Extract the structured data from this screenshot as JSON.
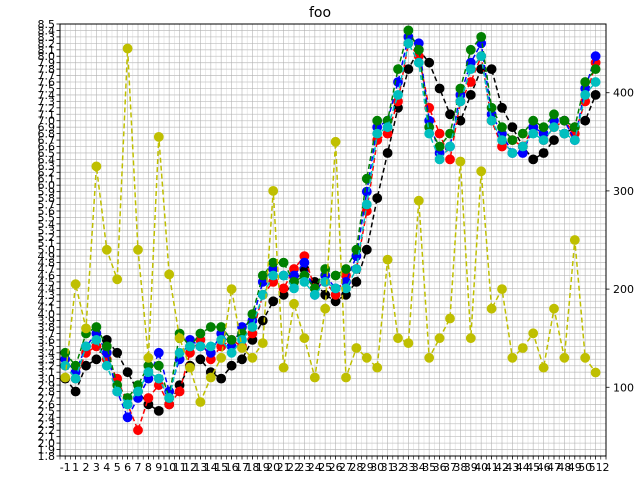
{
  "chart_data": {
    "type": "line",
    "title": "foo",
    "xlabel": "",
    "ylabel": "",
    "grid": true,
    "legend": "none",
    "left_axis": {
      "ylim": [
        1.8,
        8.5
      ],
      "label_step": 0.1,
      "top_tick_label": "8.5"
    },
    "right_axis": {
      "ylim": [
        30,
        470
      ],
      "ticks": [
        100,
        200,
        300,
        400
      ]
    },
    "x_axis": {
      "xlim": [
        -0.5,
        52
      ],
      "first_tick_label": "-1",
      "last_tick_label": "2"
    },
    "series": [
      {
        "color": "#000000",
        "marker": "o",
        "linestyle": "dashed",
        "axis": "left",
        "points": [
          [
            0,
            3.0
          ],
          [
            1,
            2.8
          ],
          [
            2,
            3.2
          ],
          [
            3,
            3.3
          ],
          [
            4,
            3.6
          ],
          [
            5,
            3.4
          ],
          [
            6,
            3.1
          ],
          [
            7,
            2.8
          ],
          [
            8,
            2.6
          ],
          [
            9,
            2.5
          ],
          [
            10,
            2.6
          ],
          [
            11,
            2.9
          ],
          [
            12,
            3.2
          ],
          [
            13,
            3.3
          ],
          [
            14,
            3.1
          ],
          [
            15,
            3.0
          ],
          [
            16,
            3.2
          ],
          [
            17,
            3.3
          ],
          [
            18,
            3.6
          ],
          [
            19,
            3.9
          ],
          [
            20,
            4.2
          ],
          [
            21,
            4.3
          ],
          [
            22,
            4.5
          ],
          [
            23,
            4.7
          ],
          [
            24,
            4.5
          ],
          [
            25,
            4.3
          ],
          [
            26,
            4.2
          ],
          [
            27,
            4.3
          ],
          [
            28,
            4.5
          ],
          [
            29,
            5.0
          ],
          [
            30,
            5.8
          ],
          [
            31,
            6.5
          ],
          [
            32,
            7.2
          ],
          [
            33,
            7.8
          ],
          [
            34,
            8.1
          ],
          [
            35,
            7.9
          ],
          [
            36,
            7.5
          ],
          [
            37,
            7.1
          ],
          [
            38,
            7.0
          ],
          [
            39,
            7.4
          ],
          [
            40,
            7.8
          ],
          [
            41,
            7.8
          ],
          [
            42,
            7.2
          ],
          [
            43,
            6.9
          ],
          [
            44,
            6.6
          ],
          [
            45,
            6.4
          ],
          [
            46,
            6.5
          ],
          [
            47,
            6.7
          ],
          [
            48,
            6.8
          ],
          [
            49,
            6.9
          ],
          [
            50,
            7.0
          ],
          [
            51,
            7.4
          ]
        ]
      },
      {
        "color": "#ff0000",
        "marker": "o",
        "linestyle": "dashed",
        "axis": "left",
        "points": [
          [
            0,
            3.2
          ],
          [
            1,
            3.0
          ],
          [
            2,
            3.4
          ],
          [
            3,
            3.5
          ],
          [
            4,
            3.3
          ],
          [
            5,
            3.0
          ],
          [
            6,
            2.6
          ],
          [
            7,
            2.2
          ],
          [
            8,
            2.7
          ],
          [
            9,
            2.9
          ],
          [
            10,
            2.6
          ],
          [
            11,
            2.8
          ],
          [
            12,
            3.4
          ],
          [
            13,
            3.6
          ],
          [
            14,
            3.3
          ],
          [
            15,
            3.5
          ],
          [
            16,
            3.6
          ],
          [
            17,
            3.5
          ],
          [
            18,
            3.7
          ],
          [
            19,
            4.3
          ],
          [
            20,
            4.5
          ],
          [
            21,
            4.4
          ],
          [
            22,
            4.7
          ],
          [
            23,
            4.9
          ],
          [
            24,
            4.4
          ],
          [
            25,
            4.5
          ],
          [
            26,
            4.3
          ],
          [
            27,
            4.6
          ],
          [
            28,
            4.7
          ],
          [
            29,
            5.6
          ],
          [
            30,
            6.7
          ],
          [
            31,
            6.8
          ],
          [
            32,
            7.3
          ],
          [
            33,
            8.2
          ],
          [
            34,
            8.0
          ],
          [
            35,
            7.2
          ],
          [
            36,
            6.8
          ],
          [
            37,
            6.4
          ],
          [
            38,
            7.3
          ],
          [
            39,
            7.6
          ],
          [
            40,
            8.0
          ],
          [
            41,
            7.0
          ],
          [
            42,
            6.6
          ],
          [
            43,
            6.7
          ],
          [
            44,
            6.6
          ],
          [
            45,
            6.9
          ],
          [
            46,
            6.7
          ],
          [
            47,
            6.9
          ],
          [
            48,
            7.0
          ],
          [
            49,
            6.8
          ],
          [
            50,
            7.3
          ],
          [
            51,
            7.9
          ]
        ]
      },
      {
        "color": "#0000ff",
        "marker": "o",
        "linestyle": "dashed",
        "axis": "left",
        "points": [
          [
            0,
            3.3
          ],
          [
            1,
            3.1
          ],
          [
            2,
            3.5
          ],
          [
            3,
            3.7
          ],
          [
            4,
            3.4
          ],
          [
            5,
            2.8
          ],
          [
            6,
            2.4
          ],
          [
            7,
            2.7
          ],
          [
            8,
            3.0
          ],
          [
            9,
            3.4
          ],
          [
            10,
            2.8
          ],
          [
            11,
            3.3
          ],
          [
            12,
            3.6
          ],
          [
            13,
            3.5
          ],
          [
            14,
            3.4
          ],
          [
            15,
            3.7
          ],
          [
            16,
            3.5
          ],
          [
            17,
            3.8
          ],
          [
            18,
            3.9
          ],
          [
            19,
            4.5
          ],
          [
            20,
            4.7
          ],
          [
            21,
            4.6
          ],
          [
            22,
            4.6
          ],
          [
            23,
            4.8
          ],
          [
            24,
            4.3
          ],
          [
            25,
            4.6
          ],
          [
            26,
            4.4
          ],
          [
            27,
            4.5
          ],
          [
            28,
            4.9
          ],
          [
            29,
            5.9
          ],
          [
            30,
            6.9
          ],
          [
            31,
            7.0
          ],
          [
            32,
            7.6
          ],
          [
            33,
            8.3
          ],
          [
            34,
            8.2
          ],
          [
            35,
            7.0
          ],
          [
            36,
            6.5
          ],
          [
            37,
            6.6
          ],
          [
            38,
            7.4
          ],
          [
            39,
            7.9
          ],
          [
            40,
            8.2
          ],
          [
            41,
            7.1
          ],
          [
            42,
            6.8
          ],
          [
            43,
            6.5
          ],
          [
            44,
            6.5
          ],
          [
            45,
            6.9
          ],
          [
            46,
            6.8
          ],
          [
            47,
            7.0
          ],
          [
            48,
            7.0
          ],
          [
            49,
            6.7
          ],
          [
            50,
            7.5
          ],
          [
            51,
            8.0
          ]
        ]
      },
      {
        "color": "#008000",
        "marker": "o",
        "linestyle": "dashed",
        "axis": "left",
        "points": [
          [
            0,
            3.4
          ],
          [
            1,
            3.2
          ],
          [
            2,
            3.7
          ],
          [
            3,
            3.8
          ],
          [
            4,
            3.5
          ],
          [
            5,
            2.9
          ],
          [
            6,
            2.7
          ],
          [
            7,
            2.9
          ],
          [
            8,
            3.2
          ],
          [
            9,
            3.2
          ],
          [
            10,
            2.7
          ],
          [
            11,
            3.7
          ],
          [
            12,
            3.5
          ],
          [
            13,
            3.7
          ],
          [
            14,
            3.8
          ],
          [
            15,
            3.8
          ],
          [
            16,
            3.6
          ],
          [
            17,
            3.7
          ],
          [
            18,
            4.0
          ],
          [
            19,
            4.6
          ],
          [
            20,
            4.8
          ],
          [
            21,
            4.8
          ],
          [
            22,
            4.5
          ],
          [
            23,
            4.6
          ],
          [
            24,
            4.4
          ],
          [
            25,
            4.7
          ],
          [
            26,
            4.6
          ],
          [
            27,
            4.7
          ],
          [
            28,
            5.0
          ],
          [
            29,
            6.1
          ],
          [
            30,
            7.0
          ],
          [
            31,
            7.0
          ],
          [
            32,
            7.8
          ],
          [
            33,
            8.4
          ],
          [
            34,
            8.1
          ],
          [
            35,
            6.9
          ],
          [
            36,
            6.6
          ],
          [
            37,
            6.8
          ],
          [
            38,
            7.5
          ],
          [
            39,
            8.1
          ],
          [
            40,
            8.3
          ],
          [
            41,
            7.2
          ],
          [
            42,
            6.9
          ],
          [
            43,
            6.7
          ],
          [
            44,
            6.8
          ],
          [
            45,
            7.0
          ],
          [
            46,
            6.9
          ],
          [
            47,
            7.1
          ],
          [
            48,
            7.0
          ],
          [
            49,
            6.9
          ],
          [
            50,
            7.6
          ],
          [
            51,
            7.8
          ]
        ]
      },
      {
        "color": "#00bfbf",
        "marker": "o",
        "linestyle": "dashed",
        "axis": "left",
        "points": [
          [
            0,
            3.2
          ],
          [
            1,
            3.0
          ],
          [
            2,
            3.5
          ],
          [
            3,
            3.6
          ],
          [
            4,
            3.2
          ],
          [
            5,
            2.8
          ],
          [
            6,
            2.6
          ],
          [
            7,
            2.8
          ],
          [
            8,
            3.1
          ],
          [
            9,
            3.0
          ],
          [
            10,
            2.7
          ],
          [
            11,
            3.4
          ],
          [
            12,
            3.5
          ],
          [
            13,
            3.5
          ],
          [
            14,
            3.5
          ],
          [
            15,
            3.6
          ],
          [
            16,
            3.4
          ],
          [
            17,
            3.6
          ],
          [
            18,
            3.8
          ],
          [
            19,
            4.3
          ],
          [
            20,
            4.6
          ],
          [
            21,
            4.6
          ],
          [
            22,
            4.4
          ],
          [
            23,
            4.5
          ],
          [
            24,
            4.3
          ],
          [
            25,
            4.5
          ],
          [
            26,
            4.4
          ],
          [
            27,
            4.4
          ],
          [
            28,
            4.7
          ],
          [
            29,
            5.7
          ],
          [
            30,
            6.8
          ],
          [
            31,
            6.9
          ],
          [
            32,
            7.4
          ],
          [
            33,
            8.2
          ],
          [
            34,
            7.9
          ],
          [
            35,
            6.8
          ],
          [
            36,
            6.4
          ],
          [
            37,
            6.6
          ],
          [
            38,
            7.3
          ],
          [
            39,
            7.8
          ],
          [
            40,
            8.0
          ],
          [
            41,
            7.0
          ],
          [
            42,
            6.7
          ],
          [
            43,
            6.5
          ],
          [
            44,
            6.6
          ],
          [
            45,
            6.8
          ],
          [
            46,
            6.7
          ],
          [
            47,
            6.9
          ],
          [
            48,
            6.8
          ],
          [
            49,
            6.7
          ],
          [
            50,
            7.4
          ],
          [
            51,
            7.6
          ]
        ]
      },
      {
        "color": "#bfbf00",
        "marker": "o",
        "linestyle": "dashed",
        "axis": "right",
        "points": [
          [
            0,
            110
          ],
          [
            1,
            205
          ],
          [
            2,
            160
          ],
          [
            3,
            325
          ],
          [
            4,
            240
          ],
          [
            5,
            210
          ],
          [
            6,
            445
          ],
          [
            7,
            240
          ],
          [
            8,
            130
          ],
          [
            9,
            355
          ],
          [
            10,
            215
          ],
          [
            11,
            150
          ],
          [
            12,
            120
          ],
          [
            13,
            85
          ],
          [
            14,
            110
          ],
          [
            15,
            130
          ],
          [
            16,
            200
          ],
          [
            17,
            140
          ],
          [
            18,
            130
          ],
          [
            19,
            145
          ],
          [
            20,
            300
          ],
          [
            21,
            120
          ],
          [
            22,
            185
          ],
          [
            23,
            150
          ],
          [
            24,
            110
          ],
          [
            25,
            180
          ],
          [
            26,
            350
          ],
          [
            27,
            110
          ],
          [
            28,
            140
          ],
          [
            29,
            130
          ],
          [
            30,
            120
          ],
          [
            31,
            230
          ],
          [
            32,
            150
          ],
          [
            33,
            145
          ],
          [
            34,
            290
          ],
          [
            35,
            130
          ],
          [
            36,
            150
          ],
          [
            37,
            170
          ],
          [
            38,
            330
          ],
          [
            39,
            150
          ],
          [
            40,
            320
          ],
          [
            41,
            180
          ],
          [
            42,
            200
          ],
          [
            43,
            130
          ],
          [
            44,
            140
          ],
          [
            45,
            155
          ],
          [
            46,
            120
          ],
          [
            47,
            180
          ],
          [
            48,
            130
          ],
          [
            49,
            250
          ],
          [
            50,
            130
          ],
          [
            51,
            115
          ]
        ]
      }
    ]
  }
}
